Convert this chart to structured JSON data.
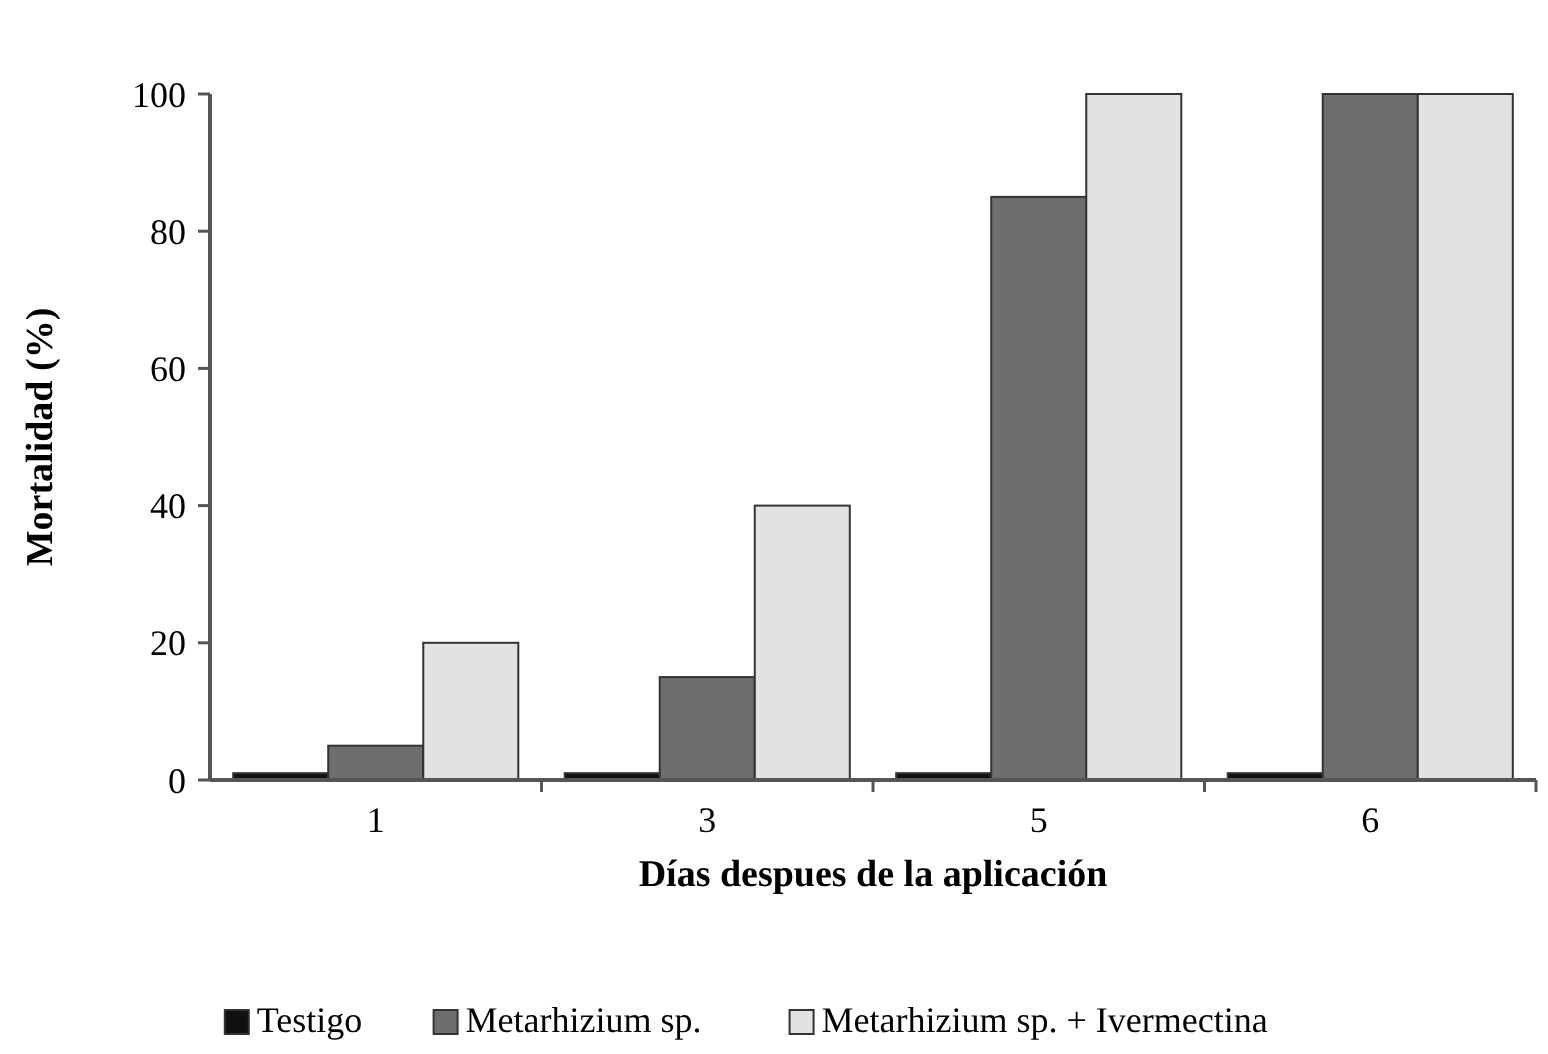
{
  "chart_data": {
    "type": "bar",
    "xlabel": "Días despues de la aplicación",
    "ylabel": "Mortalidad (%)",
    "categories": [
      "1",
      "3",
      "5",
      "6"
    ],
    "series": [
      {
        "name": "Testigo",
        "color": "#111111",
        "values": [
          1,
          1,
          1,
          1
        ]
      },
      {
        "name": "Metarhizium sp.",
        "color": "#6e6e6e",
        "values": [
          5,
          15,
          85,
          100
        ]
      },
      {
        "name": "Metarhizium sp. + Ivermectina",
        "color": "#e2e2e2",
        "values": [
          20,
          40,
          100,
          100
        ]
      }
    ],
    "ylim": [
      0,
      100
    ],
    "yticks": [
      0,
      20,
      40,
      60,
      80,
      100
    ],
    "grid": false,
    "legend": "bottom"
  }
}
